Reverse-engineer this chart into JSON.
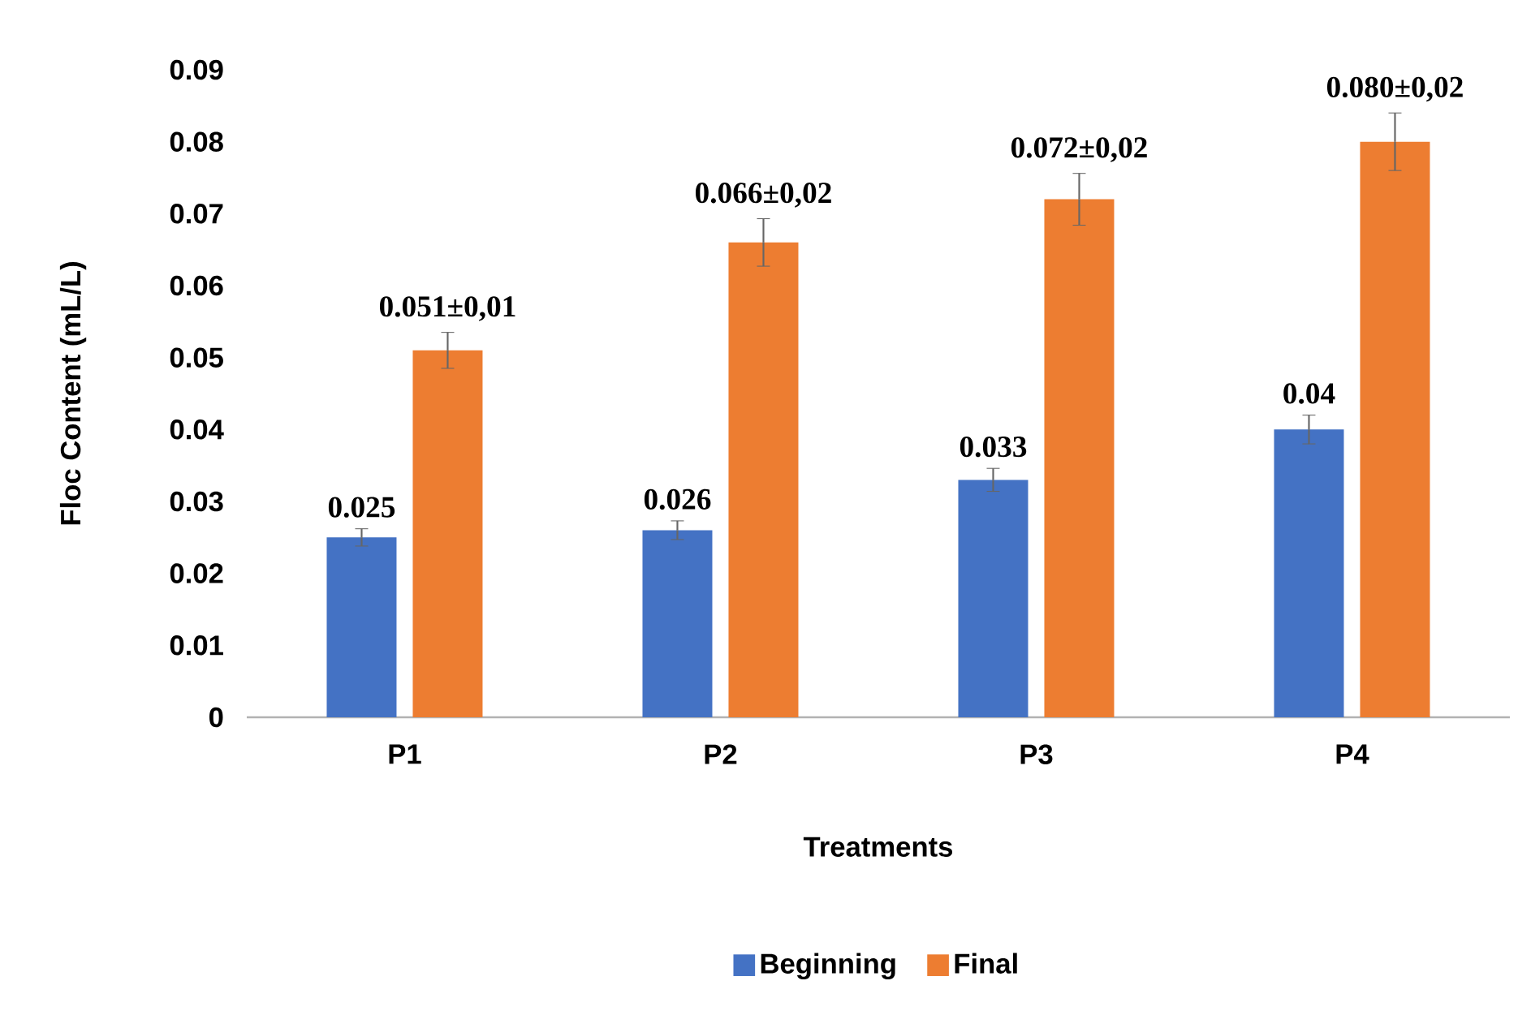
{
  "chart_data": {
    "type": "bar",
    "xlabel": "Treatments",
    "ylabel": "Floc Content (mL/L)",
    "categories": [
      "P1",
      "P2",
      "P3",
      "P4"
    ],
    "series": [
      {
        "name": "Beginning",
        "color": "#4472c4",
        "values": [
          0.025,
          0.026,
          0.033,
          0.04
        ],
        "errors": [
          0.0012,
          0.0013,
          0.0016,
          0.002
        ],
        "value_labels": [
          "0.025",
          "0.026",
          "0.033",
          "0.04"
        ]
      },
      {
        "name": "Final",
        "color": "#ed7d31",
        "values": [
          0.051,
          0.066,
          0.072,
          0.08
        ],
        "errors": [
          0.0025,
          0.0033,
          0.0036,
          0.004
        ],
        "value_labels": [
          "0.051±0,01",
          "0.066±0,02",
          "0.072±0,02",
          "0.080±0,02"
        ]
      }
    ],
    "ylim": [
      0,
      0.09
    ],
    "yticks": [
      0,
      0.01,
      0.02,
      0.03,
      0.04,
      0.05,
      0.06,
      0.07,
      0.08,
      0.09
    ],
    "legend": "bottom",
    "grid": false
  }
}
